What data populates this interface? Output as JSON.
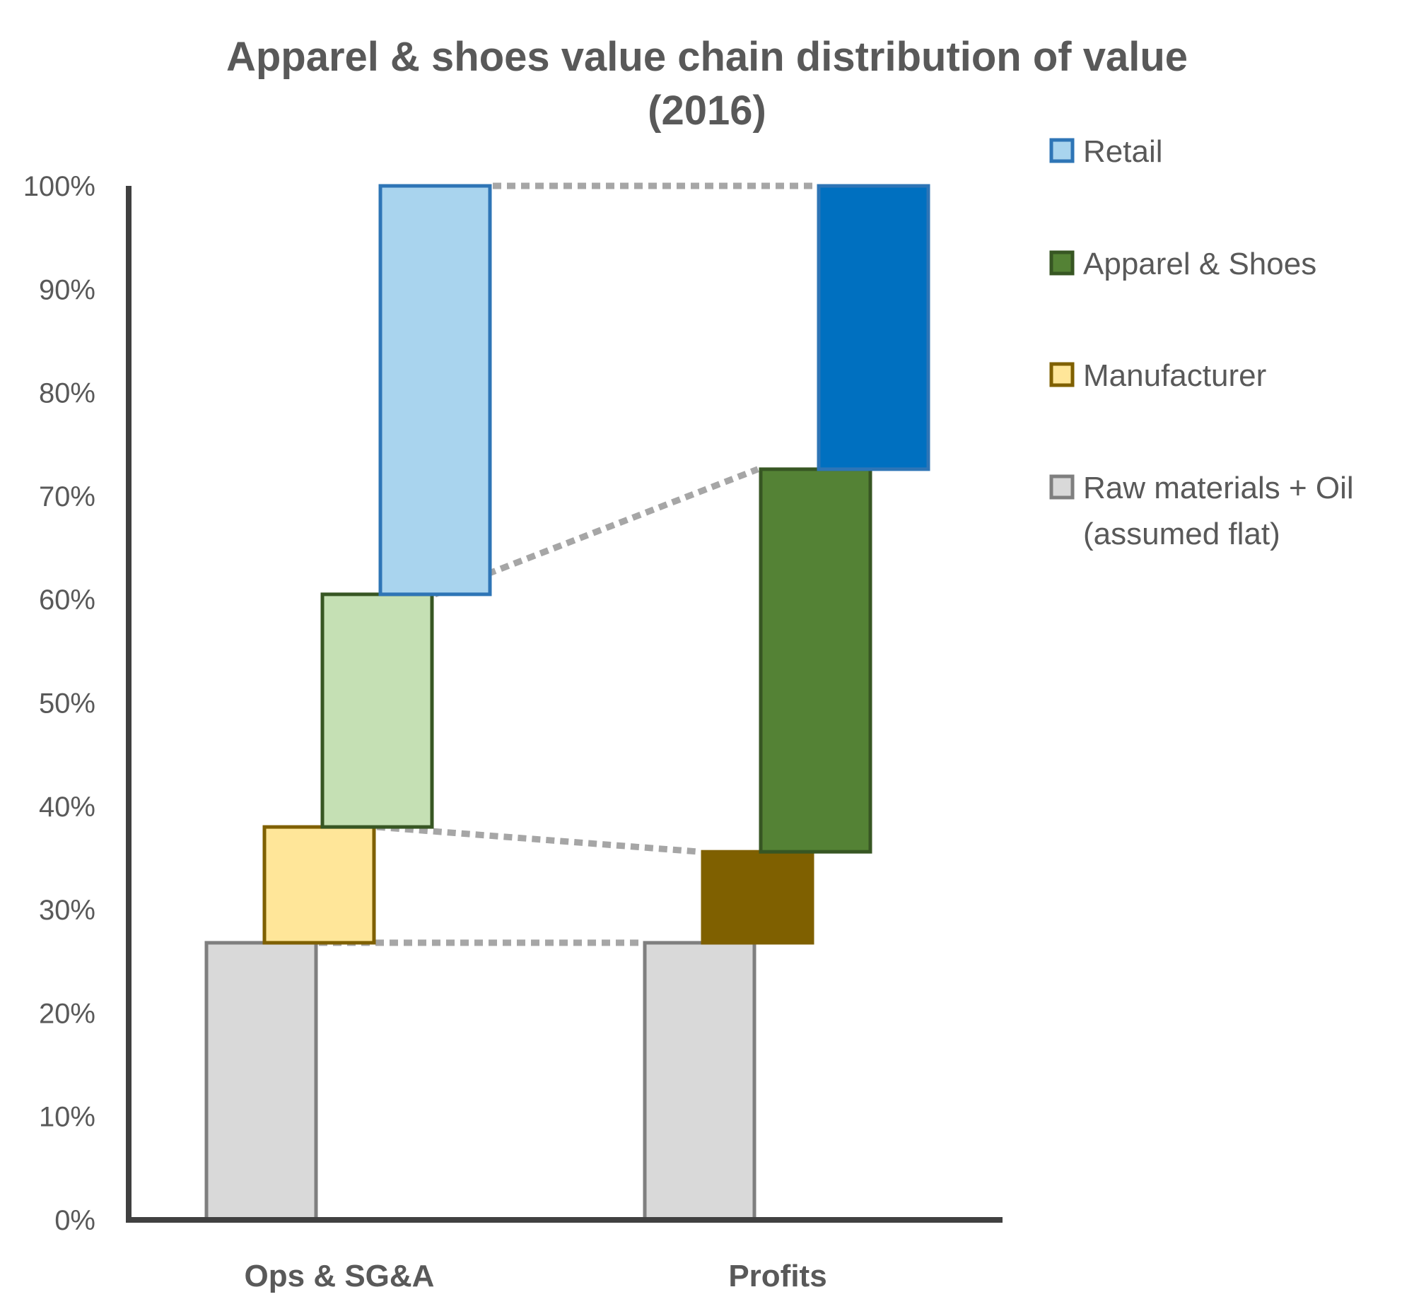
{
  "chart_data": {
    "type": "bar",
    "subtype": "stacked-waterfall",
    "title_lines": [
      "Apparel & shoes value chain distribution of value",
      "(2016)"
    ],
    "categories": [
      "Ops & SG&A",
      "Profits"
    ],
    "y_ticks": [
      "0%",
      "10%",
      "20%",
      "30%",
      "40%",
      "50%",
      "60%",
      "70%",
      "80%",
      "90%",
      "100%"
    ],
    "ylim": [
      0,
      100
    ],
    "grid": false,
    "legend_position": "right",
    "series": [
      {
        "name": "Raw materials + Oil (assumed flat)",
        "legend_lines": [
          "Raw materials + Oil",
          "(assumed flat)"
        ],
        "values": [
          26.8,
          26.8
        ],
        "fill": [
          "#d9d9d9",
          "#d9d9d9"
        ],
        "stroke": "#7f7f7f"
      },
      {
        "name": "Manufacturer",
        "legend_lines": [
          "Manufacturer"
        ],
        "values": [
          11.2,
          8.8
        ],
        "fill": [
          "#ffe699",
          "#7f6000"
        ],
        "stroke": "#7f6000"
      },
      {
        "name": "Apparel & Shoes",
        "legend_lines": [
          "Apparel & Shoes"
        ],
        "values": [
          22.5,
          37.0
        ],
        "fill": [
          "#c5e0b4",
          "#548235"
        ],
        "stroke": "#375623"
      },
      {
        "name": "Retail",
        "legend_lines": [
          "Retail"
        ],
        "values": [
          39.5,
          27.4
        ],
        "fill": [
          "#a9d4ee",
          "#0070c0"
        ],
        "stroke": "#2e75b6"
      }
    ],
    "legend": [
      {
        "label_lines": [
          "Retail"
        ],
        "fill": "#a9d4ee",
        "stroke": "#2e75b6"
      },
      {
        "label_lines": [
          "Apparel & Shoes"
        ],
        "fill": "#548235",
        "stroke": "#375623"
      },
      {
        "label_lines": [
          "Manufacturer"
        ],
        "fill": "#ffe699",
        "stroke": "#7f6000"
      },
      {
        "label_lines": [
          "Raw materials + Oil",
          "(assumed flat)"
        ],
        "fill": "#d9d9d9",
        "stroke": "#7f7f7f"
      }
    ]
  }
}
